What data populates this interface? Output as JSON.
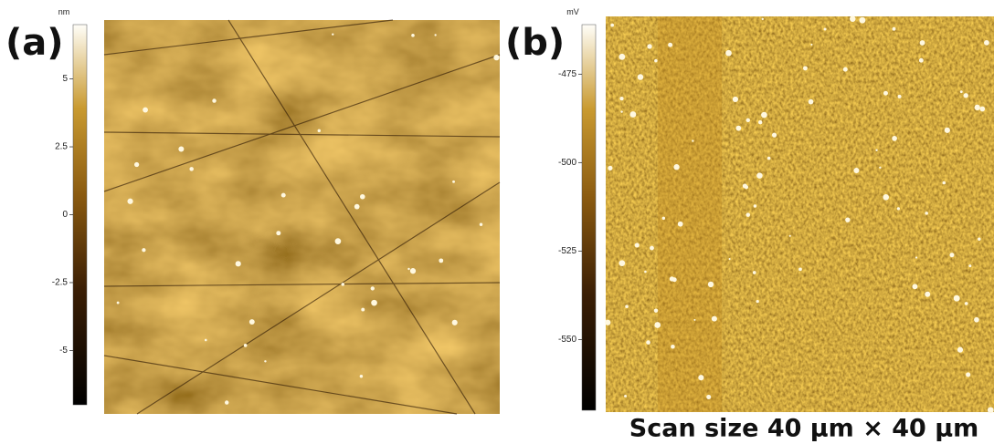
{
  "panels": [
    {
      "label": "(a)",
      "unit": "nm",
      "colorbar": {
        "lim": [
          -7,
          7
        ],
        "ticks": [
          5,
          2.5,
          0,
          -2.5,
          -5
        ]
      }
    },
    {
      "label": "(b)",
      "unit": "mV",
      "colorbar": {
        "lim": [
          -570,
          -461
        ],
        "ticks": [
          -475,
          -500,
          -525,
          -550
        ]
      }
    }
  ],
  "caption": "Scan size 40 µm × 40 µm"
}
